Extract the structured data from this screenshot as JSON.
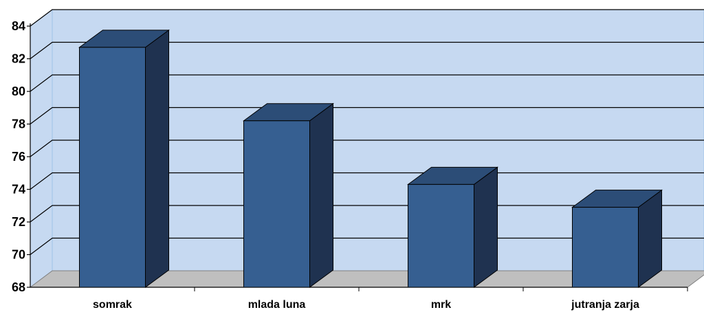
{
  "chart_data": {
    "type": "bar",
    "title": "",
    "xlabel": "",
    "ylabel": "",
    "categories": [
      "somrak",
      "mlada luna",
      "mrk",
      "jutranja zarja"
    ],
    "values": [
      82.7,
      78.2,
      74.3,
      72.9
    ],
    "ylim": [
      68,
      84
    ],
    "yticks": [
      "68",
      "70",
      "72",
      "74",
      "76",
      "78",
      "80",
      "82",
      "84"
    ],
    "grid": true,
    "legend": "none",
    "style": "3d-column",
    "colors": {
      "bar_front": "#365f91",
      "bar_top": "#2c4d77",
      "bar_side": "#1f3250",
      "wall": "#c6d9f1",
      "floor": "#bfbfbf",
      "gridline": "#000000"
    }
  }
}
